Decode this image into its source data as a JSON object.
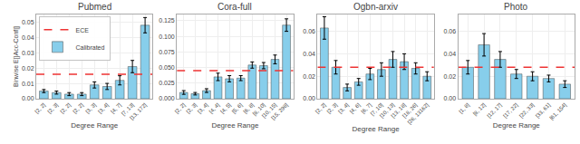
{
  "chart_data": [
    {
      "type": "bar",
      "title": "Pubmed",
      "xlabel": "Degree Range",
      "ylabel": "Binwise E[|Acc-Conf|]",
      "categories": [
        "[2, 2]",
        "[2, 3]",
        "[2, 2]",
        "[2, 2]",
        "[3, 3]",
        "[3, 4]",
        "[4, 7]",
        "[7, 13]",
        "[13, 172]"
      ],
      "series": [
        {
          "name": "Calibrated",
          "type": "bar",
          "color": "#87CEEB",
          "values": [
            0.005,
            0.004,
            0.003,
            0.003,
            0.009,
            0.008,
            0.012,
            0.021,
            0.048
          ],
          "errors": [
            0.001,
            0.001,
            0.001,
            0.001,
            0.002,
            0.002,
            0.003,
            0.004,
            0.005
          ]
        }
      ],
      "ece_line": {
        "name": "ECE",
        "value": 0.016,
        "color": "#EE3333",
        "line_style": "dashed"
      },
      "ylim": [
        0,
        0.055
      ],
      "yticks": [
        {
          "value": 0,
          "label": "0.00"
        },
        0.01,
        0.02,
        0.03,
        0.04,
        0.05
      ],
      "grid": true,
      "legend": "upper left"
    },
    {
      "type": "bar",
      "title": "Cora-full",
      "xlabel": "Degree Range",
      "categories": [
        "[2, 2]",
        "[2, 3]",
        "[3, 4]",
        "[4, 4]",
        "[4, 5]",
        "[5, 6]",
        "[6, 8]",
        "[8, 10]",
        "[10, 15]",
        "[15, 298]"
      ],
      "series": [
        {
          "type": "bar",
          "color": "#87CEEB",
          "values": [
            0.01,
            0.008,
            0.013,
            0.035,
            0.032,
            0.033,
            0.054,
            0.053,
            0.063,
            0.118
          ],
          "errors": [
            0.003,
            0.002,
            0.003,
            0.006,
            0.005,
            0.004,
            0.005,
            0.005,
            0.007,
            0.01
          ]
        }
      ],
      "ece_line": {
        "value": 0.045,
        "color": "#EE3333",
        "line_style": "dashed"
      },
      "ylim": [
        0,
        0.135
      ],
      "yticks": [
        {
          "value": 0,
          "label": "0.000"
        },
        0.025,
        {
          "value": 0.05,
          "label": "0.050"
        },
        {
          "value": 0.075,
          "label": "0.075"
        },
        {
          "value": 0.1,
          "label": "0.100"
        },
        0.125
      ],
      "grid": true
    },
    {
      "type": "bar",
      "title": "Ogbn-arxiv",
      "xlabel": "Degree Range",
      "categories": [
        "[2, 2]",
        "[2, 3]",
        "[3, 4]",
        "[4, 6]",
        "[6, 7]",
        "[7, 10]",
        "[10, 13]",
        "[13, 18]",
        "[18, 26]",
        "[26, 13162]"
      ],
      "series": [
        {
          "type": "bar",
          "color": "#87CEEB",
          "values": [
            0.063,
            0.028,
            0.01,
            0.015,
            0.022,
            0.026,
            0.035,
            0.033,
            0.027,
            0.02
          ],
          "errors": [
            0.01,
            0.006,
            0.003,
            0.003,
            0.005,
            0.006,
            0.007,
            0.007,
            0.005,
            0.004
          ]
        }
      ],
      "ece_line": {
        "value": 0.028,
        "color": "#EE3333",
        "line_style": "dashed"
      },
      "ylim": [
        0,
        0.075
      ],
      "yticks": [
        {
          "value": 0,
          "label": "0.00"
        },
        0.02,
        0.04,
        0.06
      ],
      "grid": true
    },
    {
      "type": "bar",
      "title": "Photo",
      "xlabel": "Degree Range",
      "categories": [
        "[1, 8]",
        "[8, 12]",
        "[12, 17]",
        "[17, 22]",
        "[22, 33]",
        "[33, 61]",
        "[61, 154]"
      ],
      "series": [
        {
          "type": "bar",
          "color": "#87CEEB",
          "values": [
            0.028,
            0.048,
            0.035,
            0.022,
            0.02,
            0.018,
            0.013
          ],
          "errors": [
            0.006,
            0.01,
            0.007,
            0.004,
            0.004,
            0.003,
            0.003
          ]
        }
      ],
      "ece_line": {
        "value": 0.028,
        "color": "#EE3333",
        "line_style": "dashed"
      },
      "ylim": [
        0,
        0.075
      ],
      "yticks": [
        {
          "value": 0,
          "label": "0.00"
        },
        0.02,
        0.04,
        0.06
      ],
      "grid": true
    }
  ]
}
